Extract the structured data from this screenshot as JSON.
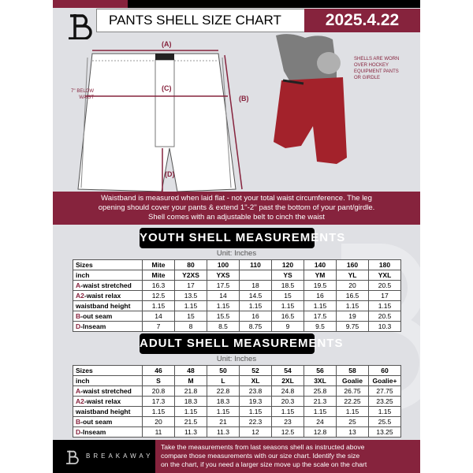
{
  "header": {
    "title": "PANTS SHELL SIZE CHART",
    "date": "2025.4.22"
  },
  "diagram": {
    "label_a": "(A)",
    "label_b": "(B)",
    "label_c": "(C)",
    "label_d": "(D)",
    "below_waist": [
      "7'' BELOW",
      "WAIST"
    ],
    "note": [
      "SHELLS ARE WORN",
      "OVER HOCKEY",
      "EQUIPMENT PANTS",
      "OR GIRDLE"
    ]
  },
  "banner": [
    "Waistband is measured when laid flat - not your total waist circumference. The leg",
    "opening should cover your pants & extend 1''-2'' past the bottom of your pant/girdle.",
    "Shell comes with an adjustable belt to cinch the waist"
  ],
  "youth": {
    "title": "YOUTH SHELL MEASUREMENTS",
    "unit": "Unit: Inches",
    "rows": [
      {
        "prefix": "",
        "label": "Sizes",
        "values": [
          "Mite",
          "80",
          "100",
          "110",
          "120",
          "140",
          "160",
          "180"
        ]
      },
      {
        "prefix": "",
        "label": "inch",
        "values": [
          "Mite",
          "Y2XS",
          "YXS",
          "",
          "YS",
          "YM",
          "YL",
          "YXL"
        ]
      },
      {
        "prefix": "A",
        "label": "-waist stretched",
        "values": [
          "16.3",
          "17",
          "17.5",
          "18",
          "18.5",
          "19.5",
          "20",
          "20.5"
        ]
      },
      {
        "prefix": "A2",
        "label": "-waist relax",
        "values": [
          "12.5",
          "13.5",
          "14",
          "14.5",
          "15",
          "16",
          "16.5",
          "17"
        ]
      },
      {
        "prefix": "",
        "label": "waistband height",
        "values": [
          "1.15",
          "1.15",
          "1.15",
          "1.15",
          "1.15",
          "1.15",
          "1.15",
          "1.15"
        ]
      },
      {
        "prefix": "B",
        "label": "-out seam",
        "values": [
          "14",
          "15",
          "15.5",
          "16",
          "16.5",
          "17.5",
          "19",
          "20.5"
        ]
      },
      {
        "prefix": "D",
        "label": "-Inseam",
        "values": [
          "7",
          "8",
          "8.5",
          "8.75",
          "9",
          "9.5",
          "9.75",
          "10.3"
        ]
      }
    ]
  },
  "adult": {
    "title": "ADULT SHELL MEASUREMENTS",
    "unit": "Unit: Inches",
    "rows": [
      {
        "prefix": "",
        "label": "Sizes",
        "values": [
          "46",
          "48",
          "50",
          "52",
          "54",
          "56",
          "58",
          "60"
        ]
      },
      {
        "prefix": "",
        "label": "inch",
        "values": [
          "S",
          "M",
          "L",
          "XL",
          "2XL",
          "3XL",
          "Goalie",
          "Goalie+"
        ]
      },
      {
        "prefix": "A",
        "label": "-waist stretched",
        "values": [
          "20.8",
          "21.8",
          "22.8",
          "23.8",
          "24.8",
          "25.8",
          "26.75",
          "27.75"
        ]
      },
      {
        "prefix": "A2",
        "label": "-waist relax",
        "values": [
          "17.3",
          "18.3",
          "18.3",
          "19.3",
          "20.3",
          "21.3",
          "22.25",
          "23.25"
        ]
      },
      {
        "prefix": "",
        "label": "waistband height",
        "values": [
          "1.15",
          "1.15",
          "1.15",
          "1.15",
          "1.15",
          "1.15",
          "1.15",
          "1.15"
        ]
      },
      {
        "prefix": "B",
        "label": "-out seam",
        "values": [
          "20",
          "21.5",
          "21",
          "22.3",
          "23",
          "24",
          "25",
          "25.5"
        ]
      },
      {
        "prefix": "D",
        "label": "-Inseam",
        "values": [
          "11",
          "11.3",
          "11.3",
          "12",
          "12.5",
          "12.8",
          "13",
          "13.25"
        ]
      }
    ]
  },
  "footer": {
    "brand": "BREAKAWAY",
    "text": [
      "Take the measurements from last seasons shell as instructed above",
      "compare those measurements  with our size chart. Identify the size",
      "on the chart, if you need a larger size move up the scale on the chart"
    ]
  },
  "colors": {
    "accent": "#86233d",
    "shell": "#a3222b"
  }
}
